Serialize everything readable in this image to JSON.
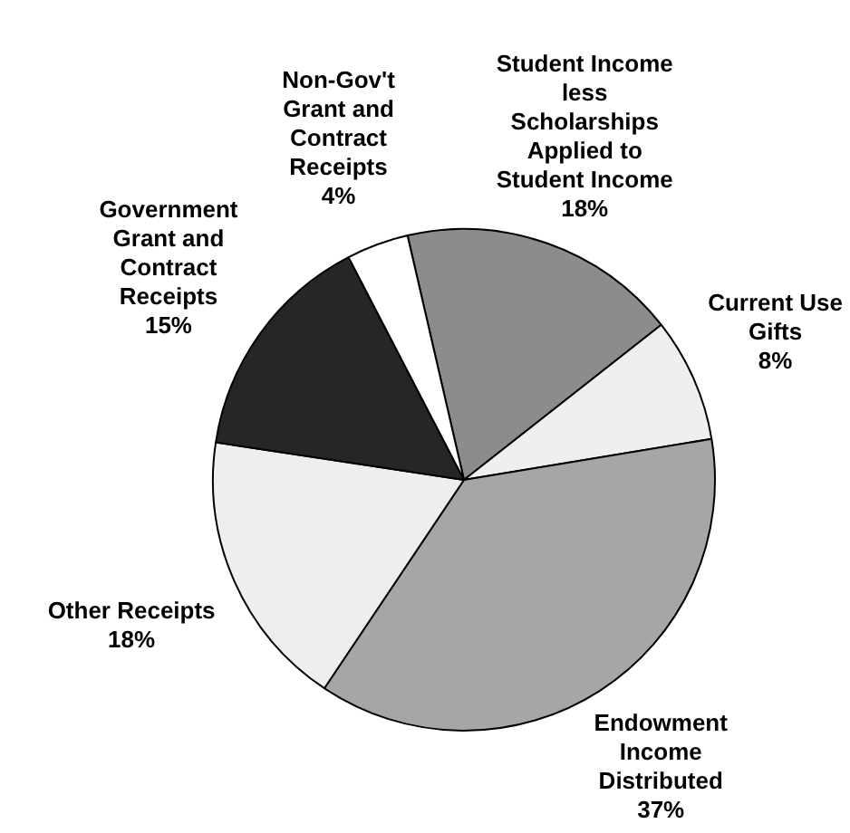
{
  "chart_data": {
    "type": "pie",
    "categories": [
      "Student Income less Scholarships Applied to Student Income",
      "Current Use Gifts",
      "Endowment Income Distributed",
      "Other Receipts",
      "Government Grant and Contract Receipts",
      "Non-Gov't Grant and Contract Receipts"
    ],
    "values": [
      18,
      8,
      37,
      18,
      15,
      4
    ],
    "value_labels": [
      "18%",
      "8%",
      "37%",
      "18%",
      "15%",
      "4%"
    ],
    "colors": [
      "#8c8c8c",
      "#efefef",
      "#a6a6a6",
      "#eeeeee",
      "#262626",
      "#ffffff"
    ],
    "legend": false
  }
}
